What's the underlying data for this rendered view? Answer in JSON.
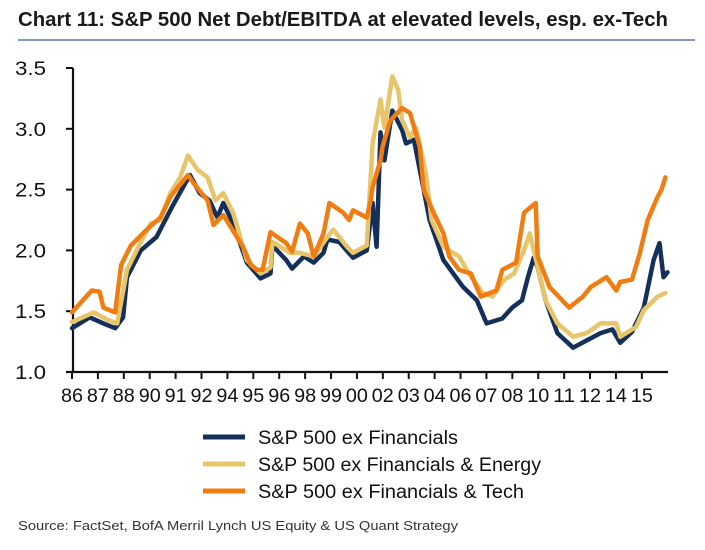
{
  "chart_data": {
    "type": "line",
    "title": "Chart 11: S&P 500 Net Debt/EBITDA at elevated levels, esp. ex-Tech",
    "xlabel": "",
    "ylabel": "",
    "xlim": [
      1986,
      2016.3
    ],
    "ylim": [
      1.0,
      3.5
    ],
    "yticks": [
      "1.0",
      "1.5",
      "2.0",
      "2.5",
      "3.0",
      "3.5"
    ],
    "xtick_labels": [
      "86",
      "87",
      "88",
      "90",
      "91",
      "92",
      "94",
      "95",
      "96",
      "98",
      "99",
      "00",
      "02",
      "03",
      "04",
      "06",
      "07",
      "08",
      "10",
      "11",
      "12",
      "14",
      "15"
    ],
    "xtick_start": 1986,
    "xtick_end": 2015,
    "grid": false,
    "legend_placement": "bottom-center",
    "source": "Source: FactSet, BofA Merril Lynch US Equity & US Quant Strategy",
    "series": [
      {
        "name": "S&P 500 ex Financials",
        "color": "#14305a",
        "points": [
          [
            1986.0,
            1.36
          ],
          [
            1986.9,
            1.45
          ],
          [
            1987.6,
            1.4
          ],
          [
            1988.2,
            1.36
          ],
          [
            1988.6,
            1.45
          ],
          [
            1988.8,
            1.78
          ],
          [
            1989.5,
            2.0
          ],
          [
            1990.3,
            2.11
          ],
          [
            1991.1,
            2.36
          ],
          [
            1992.0,
            2.62
          ],
          [
            1992.5,
            2.47
          ],
          [
            1993.0,
            2.41
          ],
          [
            1993.4,
            2.27
          ],
          [
            1993.7,
            2.39
          ],
          [
            1994.2,
            2.22
          ],
          [
            1994.9,
            1.9
          ],
          [
            1995.6,
            1.77
          ],
          [
            1996.1,
            1.81
          ],
          [
            1996.2,
            2.04
          ],
          [
            1996.9,
            1.92
          ],
          [
            1997.2,
            1.85
          ],
          [
            1997.8,
            1.95
          ],
          [
            1998.3,
            1.9
          ],
          [
            1998.8,
            1.98
          ],
          [
            1999.0,
            2.09
          ],
          [
            1999.6,
            2.07
          ],
          [
            2000.3,
            1.94
          ],
          [
            2001.0,
            2.0
          ],
          [
            2001.3,
            2.39
          ],
          [
            2001.5,
            2.03
          ],
          [
            2001.7,
            2.97
          ],
          [
            2001.9,
            2.74
          ],
          [
            2002.3,
            3.15
          ],
          [
            2002.8,
            2.99
          ],
          [
            2003.0,
            2.88
          ],
          [
            2003.4,
            2.91
          ],
          [
            2004.2,
            2.25
          ],
          [
            2004.9,
            1.92
          ],
          [
            2005.9,
            1.7
          ],
          [
            2006.6,
            1.59
          ],
          [
            2007.1,
            1.4
          ],
          [
            2007.9,
            1.44
          ],
          [
            2008.4,
            1.53
          ],
          [
            2008.9,
            1.59
          ],
          [
            2009.2,
            1.78
          ],
          [
            2009.5,
            1.94
          ],
          [
            2009.7,
            1.86
          ],
          [
            2010.1,
            1.59
          ],
          [
            2010.7,
            1.32
          ],
          [
            2011.5,
            1.2
          ],
          [
            2012.2,
            1.26
          ],
          [
            2012.9,
            1.32
          ],
          [
            2013.5,
            1.35
          ],
          [
            2013.9,
            1.24
          ],
          [
            2014.5,
            1.33
          ],
          [
            2015.1,
            1.53
          ],
          [
            2015.6,
            1.92
          ],
          [
            2015.9,
            2.06
          ],
          [
            2016.1,
            1.78
          ],
          [
            2016.3,
            1.82
          ]
        ]
      },
      {
        "name": "S&P 500 ex Financials & Energy",
        "color": "#e8c46a",
        "points": [
          [
            1986.0,
            1.41
          ],
          [
            1987.1,
            1.49
          ],
          [
            1987.8,
            1.43
          ],
          [
            1988.3,
            1.4
          ],
          [
            1988.8,
            1.84
          ],
          [
            1989.5,
            2.07
          ],
          [
            1990.0,
            2.22
          ],
          [
            1990.5,
            2.25
          ],
          [
            1991.0,
            2.47
          ],
          [
            1991.5,
            2.6
          ],
          [
            1991.9,
            2.78
          ],
          [
            1992.4,
            2.66
          ],
          [
            1992.9,
            2.6
          ],
          [
            1993.3,
            2.41
          ],
          [
            1993.7,
            2.47
          ],
          [
            1994.2,
            2.31
          ],
          [
            1994.9,
            1.92
          ],
          [
            1995.6,
            1.81
          ],
          [
            1996.1,
            1.86
          ],
          [
            1996.2,
            2.07
          ],
          [
            1997.1,
            1.98
          ],
          [
            1997.6,
            1.98
          ],
          [
            1998.3,
            1.95
          ],
          [
            1999.0,
            2.11
          ],
          [
            1999.3,
            2.17
          ],
          [
            2000.0,
            2.03
          ],
          [
            2000.3,
            1.98
          ],
          [
            2001.0,
            2.04
          ],
          [
            2001.3,
            2.88
          ],
          [
            2001.7,
            3.24
          ],
          [
            2001.9,
            3.01
          ],
          [
            2002.3,
            3.43
          ],
          [
            2002.6,
            3.32
          ],
          [
            2002.8,
            3.07
          ],
          [
            2003.2,
            2.93
          ],
          [
            2003.5,
            3.01
          ],
          [
            2004.0,
            2.64
          ],
          [
            2004.3,
            2.25
          ],
          [
            2004.9,
            2.03
          ],
          [
            2005.7,
            1.95
          ],
          [
            2006.2,
            1.81
          ],
          [
            2006.9,
            1.65
          ],
          [
            2007.4,
            1.62
          ],
          [
            2008.0,
            1.76
          ],
          [
            2008.5,
            1.81
          ],
          [
            2009.0,
            2.0
          ],
          [
            2009.3,
            2.14
          ],
          [
            2009.5,
            2.0
          ],
          [
            2010.1,
            1.59
          ],
          [
            2010.7,
            1.4
          ],
          [
            2011.5,
            1.29
          ],
          [
            2012.2,
            1.32
          ],
          [
            2012.9,
            1.4
          ],
          [
            2013.7,
            1.4
          ],
          [
            2013.9,
            1.29
          ],
          [
            2014.7,
            1.37
          ],
          [
            2015.1,
            1.51
          ],
          [
            2015.8,
            1.62
          ],
          [
            2016.2,
            1.65
          ]
        ]
      },
      {
        "name": "S&P 500 ex Financials & Tech",
        "color": "#f07d12",
        "points": [
          [
            1986.0,
            1.49
          ],
          [
            1987.0,
            1.67
          ],
          [
            1987.4,
            1.66
          ],
          [
            1987.6,
            1.53
          ],
          [
            1988.2,
            1.49
          ],
          [
            1988.5,
            1.88
          ],
          [
            1989.0,
            2.04
          ],
          [
            1989.8,
            2.17
          ],
          [
            1990.5,
            2.27
          ],
          [
            1991.0,
            2.44
          ],
          [
            1991.9,
            2.62
          ],
          [
            1992.2,
            2.55
          ],
          [
            1992.9,
            2.41
          ],
          [
            1993.2,
            2.21
          ],
          [
            1993.7,
            2.29
          ],
          [
            1994.7,
            2.03
          ],
          [
            1995.1,
            1.88
          ],
          [
            1995.4,
            1.84
          ],
          [
            1995.7,
            1.84
          ],
          [
            1996.1,
            2.15
          ],
          [
            1996.9,
            2.06
          ],
          [
            1997.2,
            1.99
          ],
          [
            1997.6,
            2.22
          ],
          [
            1998.0,
            2.14
          ],
          [
            1998.3,
            1.95
          ],
          [
            1998.8,
            2.14
          ],
          [
            1999.1,
            2.39
          ],
          [
            1999.8,
            2.31
          ],
          [
            2000.1,
            2.25
          ],
          [
            2000.3,
            2.33
          ],
          [
            2001.0,
            2.27
          ],
          [
            2001.2,
            2.41
          ],
          [
            2001.3,
            2.52
          ],
          [
            2001.7,
            2.74
          ],
          [
            2001.8,
            2.85
          ],
          [
            2002.2,
            3.07
          ],
          [
            2002.8,
            3.17
          ],
          [
            2003.2,
            3.13
          ],
          [
            2003.7,
            2.85
          ],
          [
            2003.9,
            2.5
          ],
          [
            2004.4,
            2.31
          ],
          [
            2004.9,
            2.14
          ],
          [
            2005.2,
            1.95
          ],
          [
            2005.7,
            1.84
          ],
          [
            2006.3,
            1.81
          ],
          [
            2006.8,
            1.62
          ],
          [
            2007.6,
            1.67
          ],
          [
            2007.9,
            1.84
          ],
          [
            2008.6,
            1.9
          ],
          [
            2009.0,
            2.31
          ],
          [
            2009.6,
            2.39
          ],
          [
            2009.7,
            1.95
          ],
          [
            2010.3,
            1.7
          ],
          [
            2011.3,
            1.53
          ],
          [
            2012.0,
            1.62
          ],
          [
            2012.4,
            1.7
          ],
          [
            2013.2,
            1.78
          ],
          [
            2013.7,
            1.67
          ],
          [
            2013.9,
            1.74
          ],
          [
            2014.5,
            1.76
          ],
          [
            2014.9,
            1.98
          ],
          [
            2015.3,
            2.25
          ],
          [
            2015.8,
            2.44
          ],
          [
            2016.0,
            2.5
          ],
          [
            2016.2,
            2.6
          ]
        ]
      }
    ]
  }
}
